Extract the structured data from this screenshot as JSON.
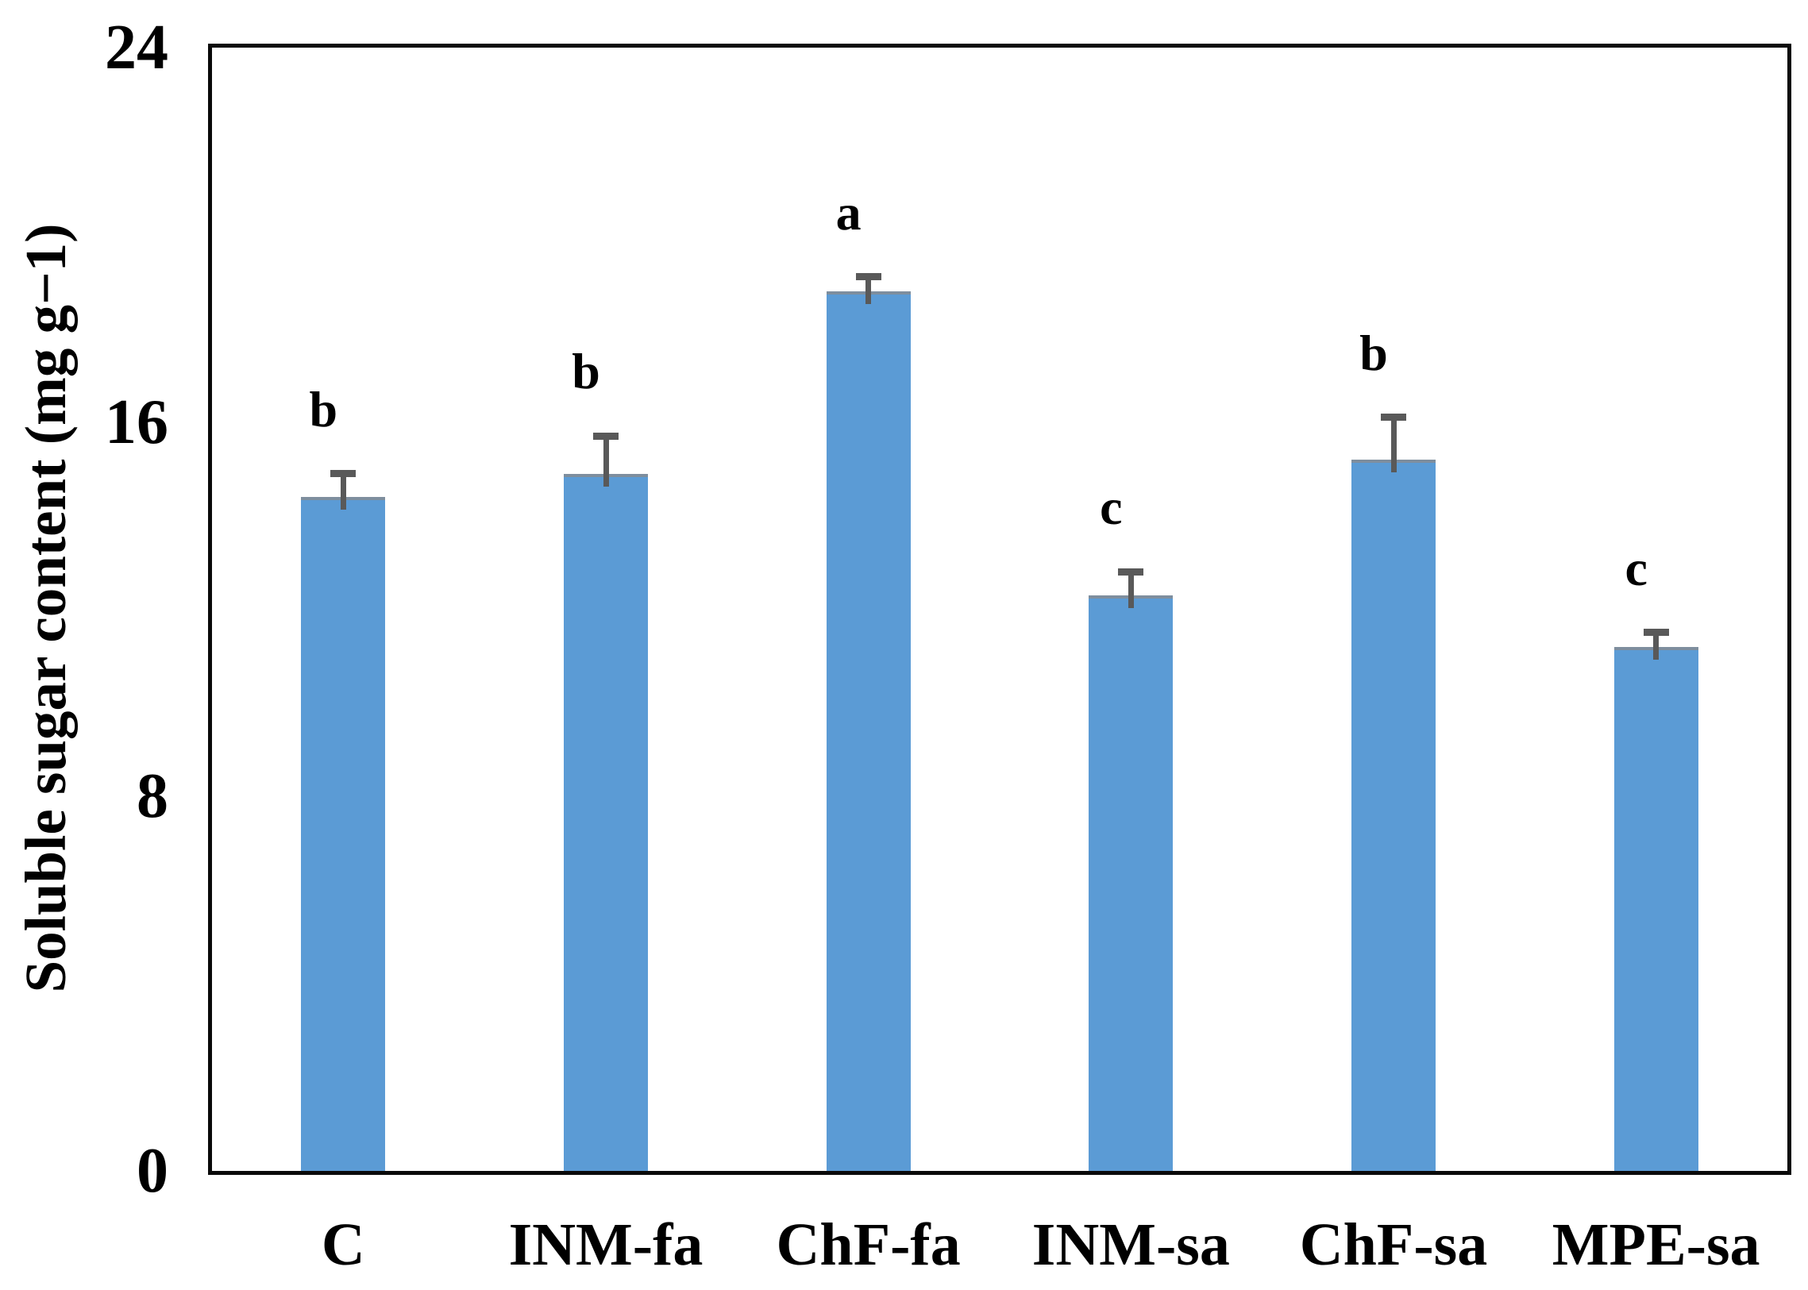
{
  "chart_data": {
    "type": "bar",
    "title": "",
    "xlabel": "",
    "ylabel": "Soluble sugar content (mg g−1)",
    "ylim": [
      0,
      24
    ],
    "yticks": [
      0,
      8,
      16,
      24
    ],
    "grid": false,
    "legend_position": "none",
    "categories": [
      "C",
      "INM-fa",
      "ChF-fa",
      "INM-sa",
      "ChF-sa",
      "MPE-sa"
    ],
    "series": [
      {
        "name": "Soluble sugar content",
        "values": [
          14.4,
          14.9,
          18.8,
          12.3,
          15.2,
          11.2
        ],
        "errors": [
          0.5,
          0.8,
          0.3,
          0.5,
          0.9,
          0.3
        ],
        "sig_letters": [
          "b",
          "b",
          "a",
          "c",
          "b",
          "c"
        ]
      }
    ],
    "bar_color": "#5b9bd5",
    "error_bar_color": "#595959",
    "axis_color": "#0a0a0a"
  }
}
